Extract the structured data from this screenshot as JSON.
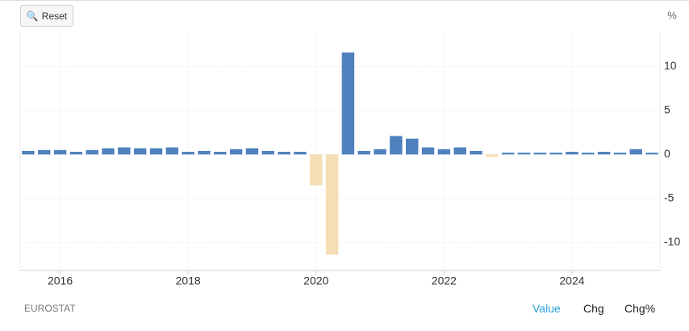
{
  "chart_data": {
    "type": "bar",
    "unit": "%",
    "categories": [
      null,
      null,
      "2016",
      null,
      null,
      null,
      null,
      null,
      null,
      null,
      "2018",
      null,
      null,
      null,
      null,
      null,
      null,
      null,
      "2020",
      null,
      null,
      null,
      null,
      null,
      null,
      null,
      "2022",
      null,
      null,
      null,
      null,
      null,
      null,
      null,
      "2024",
      null,
      null,
      null,
      null,
      null
    ],
    "values": [
      0.4,
      0.5,
      0.5,
      0.3,
      0.5,
      0.7,
      0.8,
      0.7,
      0.7,
      0.8,
      0.3,
      0.4,
      0.3,
      0.6,
      0.7,
      0.4,
      0.3,
      0.3,
      -3.5,
      -11.4,
      11.6,
      0.4,
      0.6,
      2.1,
      1.8,
      0.8,
      0.6,
      0.8,
      0.4,
      -0.3,
      0.2,
      0.2,
      0.2,
      0.2,
      0.3,
      0.2,
      0.3,
      0.2,
      0.6,
      0.2
    ],
    "positive_color": "#4e81bd",
    "negative_color": "#f5deb3",
    "ylim": [
      -13.2,
      13.9
    ],
    "yticks": [
      -10,
      -5,
      0,
      5,
      10
    ],
    "grid": true
  },
  "ui": {
    "reset": "Reset",
    "source": "EUROSTAT",
    "tabs": [
      "Value",
      "Chg",
      "Chg%"
    ]
  }
}
